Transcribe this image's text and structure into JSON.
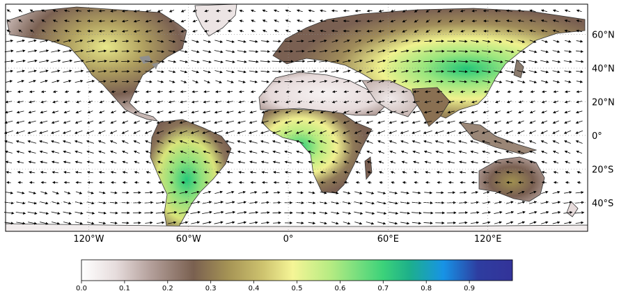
{
  "map": {
    "lon_labels": [
      "120°W",
      "60°W",
      "0°",
      "60°E",
      "120°E"
    ],
    "lon_values": [
      -120,
      -60,
      0,
      60,
      120
    ],
    "lat_labels": [
      "60°N",
      "40°N",
      "20°N",
      "0°",
      "20°S",
      "40°S"
    ],
    "lat_values": [
      60,
      40,
      20,
      0,
      -20,
      -40
    ],
    "extent": {
      "lon": [
        -170,
        180
      ],
      "lat": [
        -57,
        78
      ]
    },
    "coastline_color": "#333333",
    "ocean_color": "#ffffff",
    "vectors": "wind-arrows",
    "regions": [
      {
        "name": "north-america",
        "max_value": 0.48
      },
      {
        "name": "amazon-south-america",
        "max_value": 0.72
      },
      {
        "name": "central-africa",
        "max_value": 0.58
      },
      {
        "name": "eurasia-east-asia",
        "max_value": 0.7
      },
      {
        "name": "india",
        "max_value": 0.35
      },
      {
        "name": "australia",
        "max_value": 0.3
      }
    ]
  },
  "colorbar": {
    "ticks": [
      "0.0",
      "0.1",
      "0.2",
      "0.3",
      "0.4",
      "0.5",
      "0.6",
      "0.7",
      "0.8",
      "0.9"
    ],
    "tick_values": [
      0,
      0.1,
      0.2,
      0.3,
      0.4,
      0.5,
      0.6,
      0.7,
      0.8,
      0.9
    ],
    "range": [
      0,
      1
    ],
    "colormap": "terrain_r",
    "stops": [
      "#ffffff",
      "#e6dcdc",
      "#b4a09b",
      "#7a6050",
      "#a59355",
      "#cdc26e",
      "#f5f596",
      "#b4eb82",
      "#3cd27a",
      "#1db08a",
      "#1793e6",
      "#2e3da0",
      "#333399"
    ]
  }
}
